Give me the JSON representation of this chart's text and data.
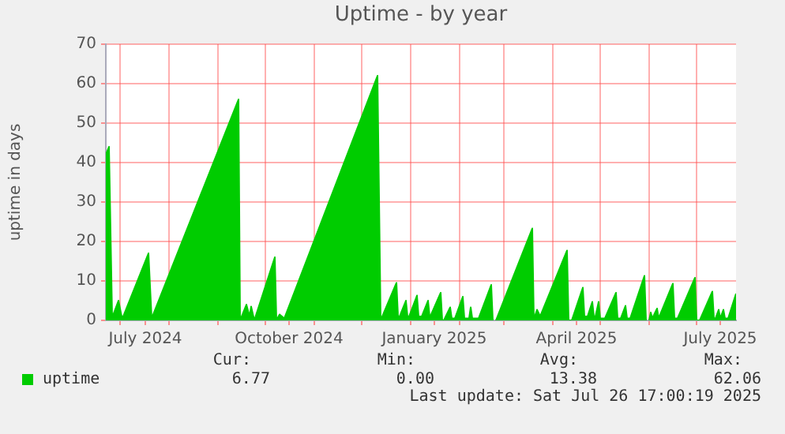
{
  "chart_data": {
    "type": "area",
    "title": "Uptime - by year",
    "ylabel": "uptime in days",
    "x": [
      "2024-06-22",
      "2024-06-24",
      "2024-06-26",
      "2024-06-30",
      "2024-07-02",
      "2024-07-03",
      "2024-07-19",
      "2024-07-21",
      "2024-09-14",
      "2024-09-15",
      "2024-09-19",
      "2024-09-21",
      "2024-09-22",
      "2024-09-24",
      "2024-10-07",
      "2024-10-08",
      "2024-10-10",
      "2024-10-13",
      "2024-12-11",
      "2024-12-13",
      "2024-12-23",
      "2024-12-24",
      "2024-12-25",
      "2024-12-29",
      "2024-12-30",
      "2024-12-31",
      "2025-01-05",
      "2025-01-06",
      "2025-01-08",
      "2025-01-12",
      "2025-01-13",
      "2025-01-14",
      "2025-01-20",
      "2025-01-21",
      "2025-01-22",
      "2025-01-26",
      "2025-01-27",
      "2025-01-29",
      "2025-02-03",
      "2025-02-04",
      "2025-02-07",
      "2025-02-08",
      "2025-02-09",
      "2025-02-13",
      "2025-02-21",
      "2025-02-22",
      "2025-02-23",
      "2025-02-24",
      "2025-03-19",
      "2025-03-20",
      "2025-03-21",
      "2025-03-22",
      "2025-03-24",
      "2025-04-10",
      "2025-04-11",
      "2025-04-13",
      "2025-04-20",
      "2025-04-21",
      "2025-04-23",
      "2025-04-26",
      "2025-04-27",
      "2025-04-28",
      "2025-04-30",
      "2025-05-01",
      "2025-05-04",
      "2025-05-11",
      "2025-05-12",
      "2025-05-14",
      "2025-05-17",
      "2025-05-18",
      "2025-05-20",
      "2025-05-29",
      "2025-05-30",
      "2025-05-31",
      "2025-06-01",
      "2025-06-02",
      "2025-06-03",
      "2025-06-06",
      "2025-06-07",
      "2025-06-16",
      "2025-06-17",
      "2025-06-19",
      "2025-06-30",
      "2025-07-01",
      "2025-07-03",
      "2025-07-11",
      "2025-07-12",
      "2025-07-13",
      "2025-07-15",
      "2025-07-16",
      "2025-07-18",
      "2025-07-19",
      "2025-07-21",
      "2025-07-26"
    ],
    "series": [
      {
        "name": "uptime",
        "color": "#00cc00",
        "values": [
          42,
          44,
          0.7,
          5,
          1,
          1,
          17,
          0.5,
          56,
          0,
          4,
          1,
          3.5,
          0,
          16,
          0,
          1.5,
          0.5,
          62,
          0,
          9.5,
          1,
          1,
          5,
          1,
          1,
          6.3,
          1,
          1,
          5,
          1,
          1.5,
          7,
          0,
          0,
          3.3,
          0.5,
          0.5,
          6,
          0.5,
          0.5,
          3.3,
          0.5,
          0.5,
          9,
          0,
          null,
          0,
          23.3,
          0,
          1.5,
          2.7,
          1,
          17.7,
          0,
          0,
          8.3,
          1,
          1,
          4.7,
          1,
          1,
          4.7,
          0.5,
          0.5,
          7,
          0.5,
          0.5,
          3.7,
          0.5,
          0.5,
          11.3,
          0,
          null,
          0,
          2,
          0.5,
          3,
          0.5,
          9.3,
          0.5,
          0.5,
          10.8,
          0,
          0,
          7.3,
          0.5,
          0.5,
          2.7,
          0.5,
          2.7,
          0.5,
          0.5,
          6.77
        ]
      }
    ],
    "xlim": [
      "2024-06-22",
      "2025-07-26"
    ],
    "xticks": [
      {
        "value": "2024-07-01",
        "label": null
      },
      {
        "value": "2024-07-17",
        "label": "July 2024"
      },
      {
        "value": "2024-08-01",
        "label": null
      },
      {
        "value": "2024-09-01",
        "label": null
      },
      {
        "value": "2024-10-01",
        "label": null
      },
      {
        "value": "2024-10-16",
        "label": "October 2024"
      },
      {
        "value": "2024-11-01",
        "label": null
      },
      {
        "value": "2024-12-01",
        "label": null
      },
      {
        "value": "2025-01-01",
        "label": null
      },
      {
        "value": "2025-01-16",
        "label": "January 2025"
      },
      {
        "value": "2025-02-01",
        "label": null
      },
      {
        "value": "2025-03-01",
        "label": null
      },
      {
        "value": "2025-04-01",
        "label": null
      },
      {
        "value": "2025-04-16",
        "label": "April 2025"
      },
      {
        "value": "2025-05-01",
        "label": null
      },
      {
        "value": "2025-06-01",
        "label": null
      },
      {
        "value": "2025-07-01",
        "label": null
      },
      {
        "value": "2025-07-16",
        "label": "July 2025"
      }
    ],
    "ylim": [
      0,
      70
    ],
    "yticks": [
      0,
      10,
      20,
      30,
      40,
      50,
      60,
      70
    ],
    "grid": true,
    "legend": "bottom left",
    "marker": "none",
    "annotations": [
      "Cur:",
      "Min:",
      "Avg:",
      "Max:",
      "6.77",
      "0.00",
      "13.38",
      "62.06",
      "Last update: Sat Jul 26 17:00:19 2025"
    ]
  }
}
